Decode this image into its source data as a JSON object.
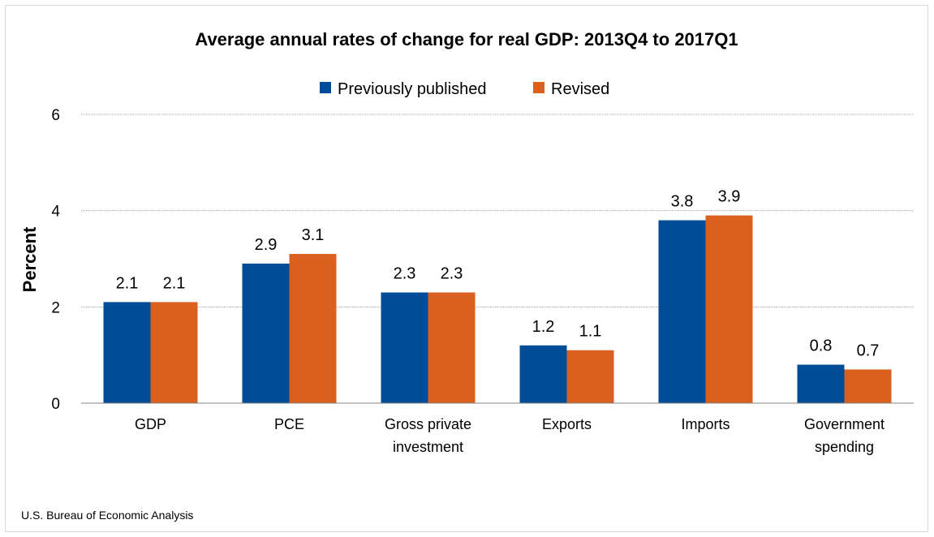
{
  "chart_data": {
    "type": "bar",
    "title": "Average annual rates of change for real GDP: 2013Q4 to 2017Q1",
    "ylabel": "Percent",
    "xlabel": "",
    "ylim": [
      0,
      6
    ],
    "yticks": [
      0,
      2,
      4,
      6
    ],
    "grid": true,
    "legend_position": "top",
    "categories": [
      [
        "GDP"
      ],
      [
        "PCE"
      ],
      [
        "Gross private",
        "investment"
      ],
      [
        "Exports"
      ],
      [
        "Imports"
      ],
      [
        "Government",
        "spending"
      ]
    ],
    "series": [
      {
        "name": "Previously published",
        "color": "#004c97",
        "values": [
          2.1,
          2.9,
          2.3,
          1.2,
          3.8,
          0.8
        ]
      },
      {
        "name": "Revised",
        "color": "#d9601e",
        "values": [
          2.1,
          3.1,
          2.3,
          1.1,
          3.9,
          0.7
        ]
      }
    ],
    "source": "U.S. Bureau of Economic Analysis"
  }
}
